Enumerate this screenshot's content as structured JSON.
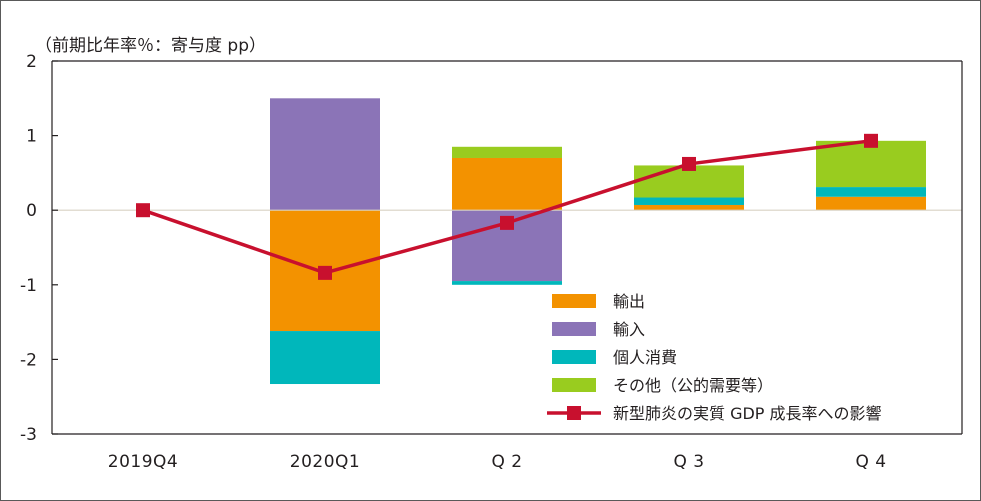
{
  "chart_data": {
    "type": "bar",
    "stacked": true,
    "unit_label": "（前期比年率％：寄与度 pp）",
    "categories": [
      "2019Q4",
      "2020Q1",
      "Q 2",
      "Q 3",
      "Q 4"
    ],
    "ylim": [
      -3,
      2
    ],
    "yticks": [
      2,
      1,
      0,
      -1,
      -2,
      -3
    ],
    "ytick_labels": [
      "2",
      "1",
      "0",
      "-1",
      "-2",
      "-3"
    ],
    "grid": false,
    "legend_position": "bottom-right",
    "series": [
      {
        "name": "輸出",
        "kind": "bar",
        "color": "#f39200",
        "values": [
          0,
          -1.62,
          0.7,
          0.07,
          0.18
        ]
      },
      {
        "name": "輸入",
        "kind": "bar",
        "color": "#8b74b7",
        "values": [
          0,
          1.5,
          -0.95,
          0,
          0
        ]
      },
      {
        "name": "個人消費",
        "kind": "bar",
        "color": "#00b7bb",
        "values": [
          0,
          -0.71,
          -0.05,
          0.1,
          0.13
        ]
      },
      {
        "name": "その他（公的需要等）",
        "kind": "bar",
        "color": "#99cc1f",
        "values": [
          0,
          0,
          0.15,
          0.43,
          0.62
        ]
      },
      {
        "name": "新型肺炎の実質 GDP 成長率への影響",
        "kind": "line",
        "color": "#c8102e",
        "values": [
          0,
          -0.84,
          -0.17,
          0.62,
          0.93
        ]
      }
    ]
  }
}
